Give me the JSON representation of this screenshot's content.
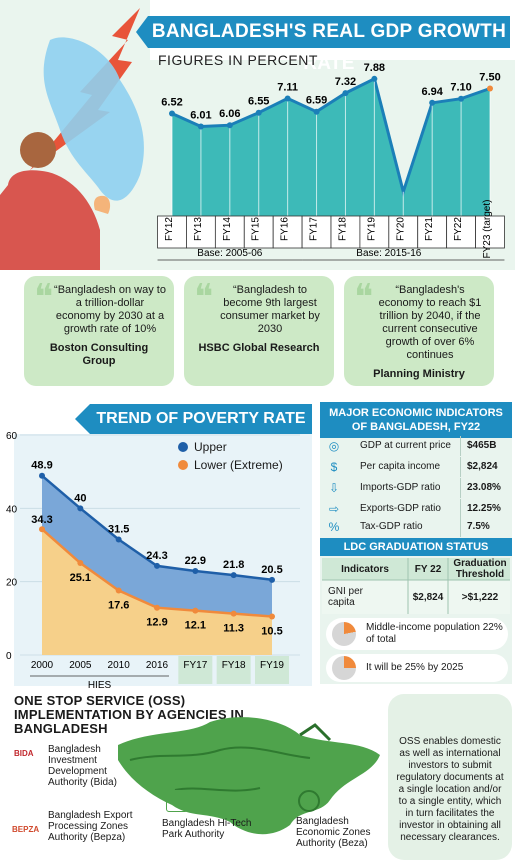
{
  "gdp": {
    "title": "BANGLADESH'S REAL GDP GROWTH RATE",
    "subtitle": "FIGURES IN PERCENT",
    "base_labels": [
      "Base: 2005-06",
      "Base: 2015-16"
    ]
  },
  "quotes": [
    {
      "text": "“Bangladesh on way to a trillion-dollar economy by 2030 at a growth rate of 10%",
      "source": "Boston Consulting Group"
    },
    {
      "text": "“Bangladesh to become 9th largest consumer market by 2030",
      "source": "HSBC Global Research"
    },
    {
      "text": "“Bangladesh's economy to reach $1 trillion by 2040, if the current consecutive growth of over 6% continues",
      "source": "Planning Ministry"
    }
  ],
  "poverty": {
    "title": "TREND OF POVERTY RATE",
    "hies_label": "HIES"
  },
  "chart_data": [
    {
      "type": "area",
      "title": "BANGLADESH'S REAL GDP GROWTH RATE",
      "subtitle": "FIGURES IN PERCENT",
      "categories": [
        "FY12",
        "FY13",
        "FY14",
        "FY15",
        "FY16",
        "FY17",
        "FY18",
        "FY19",
        "FY20",
        "FY21",
        "FY22",
        "FY23 (target)"
      ],
      "series": [
        {
          "values": [
            6.52,
            6.01,
            6.06,
            6.55,
            7.11,
            6.59,
            7.32,
            7.88,
            null,
            6.94,
            7.1,
            7.5
          ]
        }
      ],
      "value_labels": [
        "6.52",
        "6.01",
        "6.06",
        "6.55",
        "7.11",
        "6.59",
        "7.32",
        "7.88",
        "",
        "6.94",
        "7.10",
        "7.50"
      ],
      "plot_values": [
        6.52,
        6.01,
        6.06,
        6.55,
        7.11,
        6.59,
        7.32,
        7.88,
        3.45,
        6.94,
        7.1,
        7.5
      ]
    },
    {
      "type": "area",
      "title": "TREND OF POVERTY RATE",
      "categories": [
        "2000",
        "2005",
        "2010",
        "2016",
        "FY17",
        "FY18",
        "FY19"
      ],
      "series": [
        {
          "name": "Upper",
          "values": [
            48.9,
            40,
            31.5,
            24.3,
            22.9,
            21.8,
            20.5
          ]
        },
        {
          "name": "Lower (Extreme)",
          "values": [
            34.3,
            25.1,
            17.6,
            12.9,
            12.1,
            11.3,
            10.5
          ]
        }
      ],
      "value_labels_upper": [
        "48.9",
        "40",
        "31.5",
        "24.3",
        "22.9",
        "21.8",
        "20.5"
      ],
      "value_labels_lower": [
        "34.3",
        "25.1",
        "17.6",
        "12.9",
        "12.1",
        "11.3",
        "10.5"
      ],
      "yticks": [
        "60",
        "40",
        "20",
        "0"
      ],
      "ylim": [
        0,
        60
      ],
      "legend": "top-right"
    }
  ],
  "indicators": {
    "title": "MAJOR ECONOMIC INDICATORS OF BANGLADESH, FY22",
    "rows": [
      {
        "label": "GDP at current price",
        "value": "$465B",
        "icon": "coins-icon"
      },
      {
        "label": "Per capita income",
        "value": "$2,824",
        "icon": "money-icon"
      },
      {
        "label": "Imports-GDP ratio",
        "value": "23.08%",
        "icon": "import-icon"
      },
      {
        "label": "Exports-GDP ratio",
        "value": "12.25%",
        "icon": "export-icon"
      },
      {
        "label": "Tax-GDP ratio",
        "value": "7.5%",
        "icon": "tax-icon"
      }
    ]
  },
  "ldc": {
    "title": "LDC GRADUATION STATUS",
    "headers": [
      "Indicators",
      "FY 22",
      "Graduation Threshold"
    ],
    "row": {
      "indicator": "GNI per capita",
      "fy22": "$2,824",
      "threshold": ">$1,222"
    },
    "pills": [
      {
        "text": "Middle-income population 22% of total",
        "percent": 22
      },
      {
        "text": "It will be 25% by 2025",
        "percent": 25
      }
    ]
  },
  "oss": {
    "title": "ONE STOP SERVICE (OSS) IMPLEMENTATION BY AGENCIES IN BANGLADESH",
    "description": "OSS enables domestic as well as international investors to submit regulatory documents at a single location and/or to a single entity, which in turn facilitates the investor in obtaining all necessary clearances.",
    "agencies": [
      {
        "name": "Bangladesh Investment Development Authority (Bida)",
        "logo": "BIDA"
      },
      {
        "name": "Bangladesh Export Processing Zones Authority (Bepza)",
        "logo": "BEPZA"
      },
      {
        "name": "Bangladesh Hi-Tech Park Authority",
        "logo": ""
      },
      {
        "name": "Bangladesh Economic Zones Authority (Beza)",
        "logo": ""
      }
    ]
  },
  "colors": {
    "accent": "#1e8dc1",
    "upper": "#1f5fa8",
    "lower": "#f08a3c",
    "gdp_area": "#39b7b6",
    "panel_green": "#cde9c6"
  }
}
